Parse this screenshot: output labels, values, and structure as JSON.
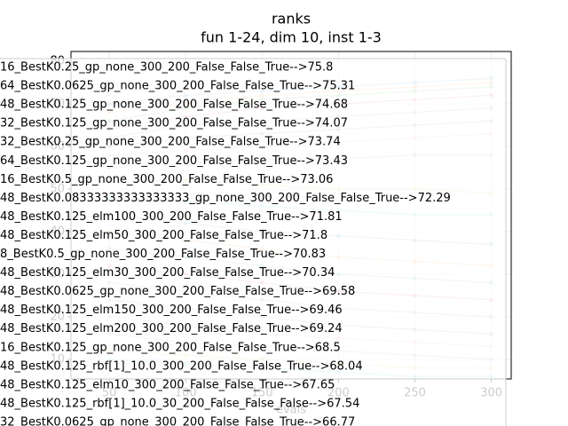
{
  "chart_data": {
    "type": "line",
    "title": "ranks",
    "subtitle": "fun 1-24, dim 10, inst 1-3",
    "xlabel": "evals",
    "x": [
      50,
      100,
      150,
      200,
      250,
      300
    ],
    "xlim": [
      25,
      313
    ],
    "xticks": [
      50,
      100,
      150,
      200,
      250,
      300
    ],
    "ylim": [
      5.4,
      82.3
    ],
    "yticks": [
      10,
      20,
      30,
      40,
      50,
      60,
      70,
      80
    ],
    "grid": true,
    "series": [
      {
        "name": "16_BestK0.25_gp_none_300_200_False_False_True-->75.8",
        "color": "#1f77b4",
        "values": [
          70,
          72,
          73,
          74,
          75,
          76
        ]
      },
      {
        "name": "64_BestK0.0625_gp_none_300_200_False_False_True-->75.31",
        "color": "#ff7f0e",
        "values": [
          68,
          70,
          72,
          73,
          74,
          75
        ]
      },
      {
        "name": "48_BestK0.125_gp_none_300_200_False_False_True-->74.68",
        "color": "#2ca02c",
        "values": [
          66,
          69,
          71,
          72,
          73,
          74
        ]
      },
      {
        "name": "32_BestK0.125_gp_none_300_200_False_False_True-->74.07",
        "color": "#d62728",
        "values": [
          64,
          67,
          69,
          70,
          71,
          72
        ]
      },
      {
        "name": "32_BestK0.25_gp_none_300_200_False_False_True-->73.74",
        "color": "#9467bd",
        "values": [
          62,
          65,
          66,
          67,
          68,
          69
        ]
      },
      {
        "name": "64_BestK0.125_gp_none_300_200_False_False_True-->73.43",
        "color": "#8c564b",
        "values": [
          60,
          62,
          63,
          64,
          65,
          66
        ]
      },
      {
        "name": "16_BestK0.5_gp_none_300_200_False_False_True-->73.06",
        "color": "#e377c2",
        "values": [
          58,
          59,
          60,
          61,
          62,
          63
        ]
      },
      {
        "name": "48_BestK0.08333333333333333_gp_none_300_200_False_False_True-->72.29",
        "color": "#7f7f7f",
        "values": [
          55,
          56,
          57,
          57,
          58,
          58
        ]
      },
      {
        "name": "48_BestK0.125_elm100_300_200_False_False_True-->71.81",
        "color": "#bcbd22",
        "values": [
          52,
          52,
          51,
          50,
          50,
          49
        ]
      },
      {
        "name": "48_BestK0.125_elm50_300_200_False_False_True-->71.8",
        "color": "#17becf",
        "values": [
          48,
          47,
          46,
          45,
          44,
          44
        ]
      },
      {
        "name": "8_BestK0.5_gp_none_300_200_False_False_True-->70.83",
        "color": "#1f77b4",
        "values": [
          44,
          42,
          40,
          39,
          38,
          37
        ]
      },
      {
        "name": "48_BestK0.125_elm30_300_200_False_False_True-->70.34",
        "color": "#ff7f0e",
        "values": [
          40,
          38,
          36,
          34,
          33,
          32
        ]
      },
      {
        "name": "48_BestK0.0625_gp_none_300_200_False_False_True-->69.58",
        "color": "#2ca02c",
        "values": [
          36,
          34,
          32,
          30,
          29,
          28
        ]
      },
      {
        "name": "48_BestK0.125_elm150_300_200_False_False_True-->69.46",
        "color": "#d62728",
        "values": [
          32,
          30,
          28,
          26,
          25,
          24
        ]
      },
      {
        "name": "48_BestK0.125_elm200_300_200_False_False_True-->69.24",
        "color": "#9467bd",
        "values": [
          28,
          26,
          24,
          22,
          21,
          20
        ]
      },
      {
        "name": "16_BestK0.125_gp_none_300_200_False_False_True-->68.5",
        "color": "#8c564b",
        "values": [
          24,
          22,
          20,
          18,
          17,
          16
        ]
      },
      {
        "name": "48_BestK0.125_rbf[1]_10.0_300_200_False_False_True-->68.04",
        "color": "#e377c2",
        "values": [
          20,
          18,
          16,
          15,
          14,
          13
        ]
      },
      {
        "name": "48_BestK0.125_elm10_300_200_False_False_True-->67.65",
        "color": "#7f7f7f",
        "values": [
          16,
          14,
          13,
          12,
          11,
          10
        ]
      },
      {
        "name": "48_BestK0.125_rbf[1]_10.0_30_200_False_False_False-->67.54",
        "color": "#bcbd22",
        "values": [
          12,
          11,
          10,
          9,
          8,
          8
        ]
      },
      {
        "name": "32_BestK0.0625_gp_none_300_200_False_False_True-->66.77",
        "color": "#17becf",
        "values": [
          10,
          9,
          8,
          7,
          6,
          6
        ]
      }
    ]
  }
}
